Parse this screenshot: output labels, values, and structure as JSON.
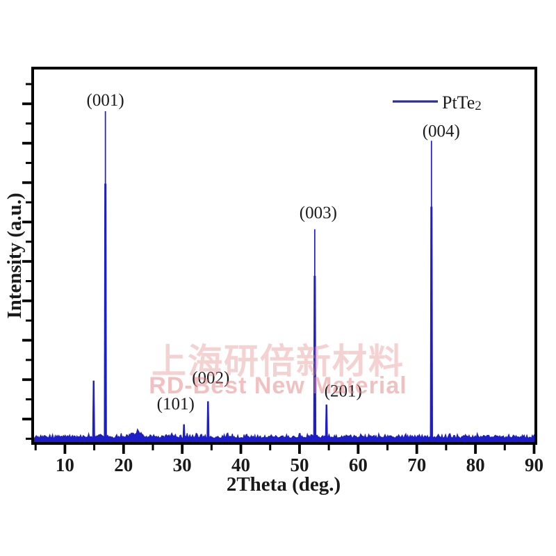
{
  "figure": {
    "background": "#ffffff",
    "frame_color": "#000000",
    "text_color": "#1a1a1a"
  },
  "watermark": {
    "line1": "上海研倍新材料",
    "line2": "RD-Best New Material"
  },
  "chart_data": {
    "type": "line",
    "title": "",
    "xlabel": "2Theta (deg.)",
    "ylabel": "Intensity (a.u.)",
    "x_axis": {
      "min": 4.5,
      "max": 90.3,
      "major_ticks": [
        10,
        20,
        30,
        40,
        50,
        60,
        70,
        80,
        90
      ],
      "minor_tick_step": 5
    },
    "y_axis": {
      "numeric_labels_shown": false,
      "units": "arbitrary"
    },
    "legend": {
      "label": "PtTe",
      "label_subscript": "2",
      "line_color": "#2e2e96",
      "position": "top-right"
    },
    "series": [
      {
        "name": "PtTe2",
        "color": "#1e1ec9",
        "baseline_intensity": 1.0,
        "noise_amplitude": 1.2,
        "peaks": [
          {
            "two_theta": 14.9,
            "intensity": 17.8,
            "label": "",
            "label_dx": 0,
            "label_dy": 0
          },
          {
            "two_theta": 16.9,
            "intensity": 100,
            "label": "(001)",
            "label_dx": 0,
            "label_dy": -8
          },
          {
            "two_theta": 30.3,
            "intensity": 4.5,
            "label": "(101)",
            "label_dx": -12,
            "label_dy": -22
          },
          {
            "two_theta": 34.4,
            "intensity": 11.5,
            "label": "(002)",
            "label_dx": 4,
            "label_dy": -26
          },
          {
            "two_theta": 52.6,
            "intensity": 64,
            "label": "(003)",
            "label_dx": 5,
            "label_dy": -16
          },
          {
            "two_theta": 54.6,
            "intensity": 10.5,
            "label": "(201)",
            "label_dx": 24,
            "label_dy": -12
          },
          {
            "two_theta": 72.5,
            "intensity": 91,
            "label": "(004)",
            "label_dx": 14,
            "label_dy": -6
          }
        ],
        "minor_features": [
          {
            "two_theta": 16.0,
            "intensity": 0.9,
            "sigma": 0.6
          },
          {
            "two_theta": 21.4,
            "intensity": 1.3,
            "sigma": 0.35
          },
          {
            "two_theta": 22.4,
            "intensity": 1.9,
            "sigma": 0.5
          },
          {
            "two_theta": 23.2,
            "intensity": 0.9,
            "sigma": 0.3
          },
          {
            "two_theta": 25.1,
            "intensity": 0.5,
            "sigma": 0.3
          },
          {
            "two_theta": 27.6,
            "intensity": 0.6,
            "sigma": 0.3
          },
          {
            "two_theta": 44.9,
            "intensity": 0.4,
            "sigma": 0.3
          },
          {
            "two_theta": 57.6,
            "intensity": 0.4,
            "sigma": 0.3
          }
        ]
      }
    ]
  }
}
